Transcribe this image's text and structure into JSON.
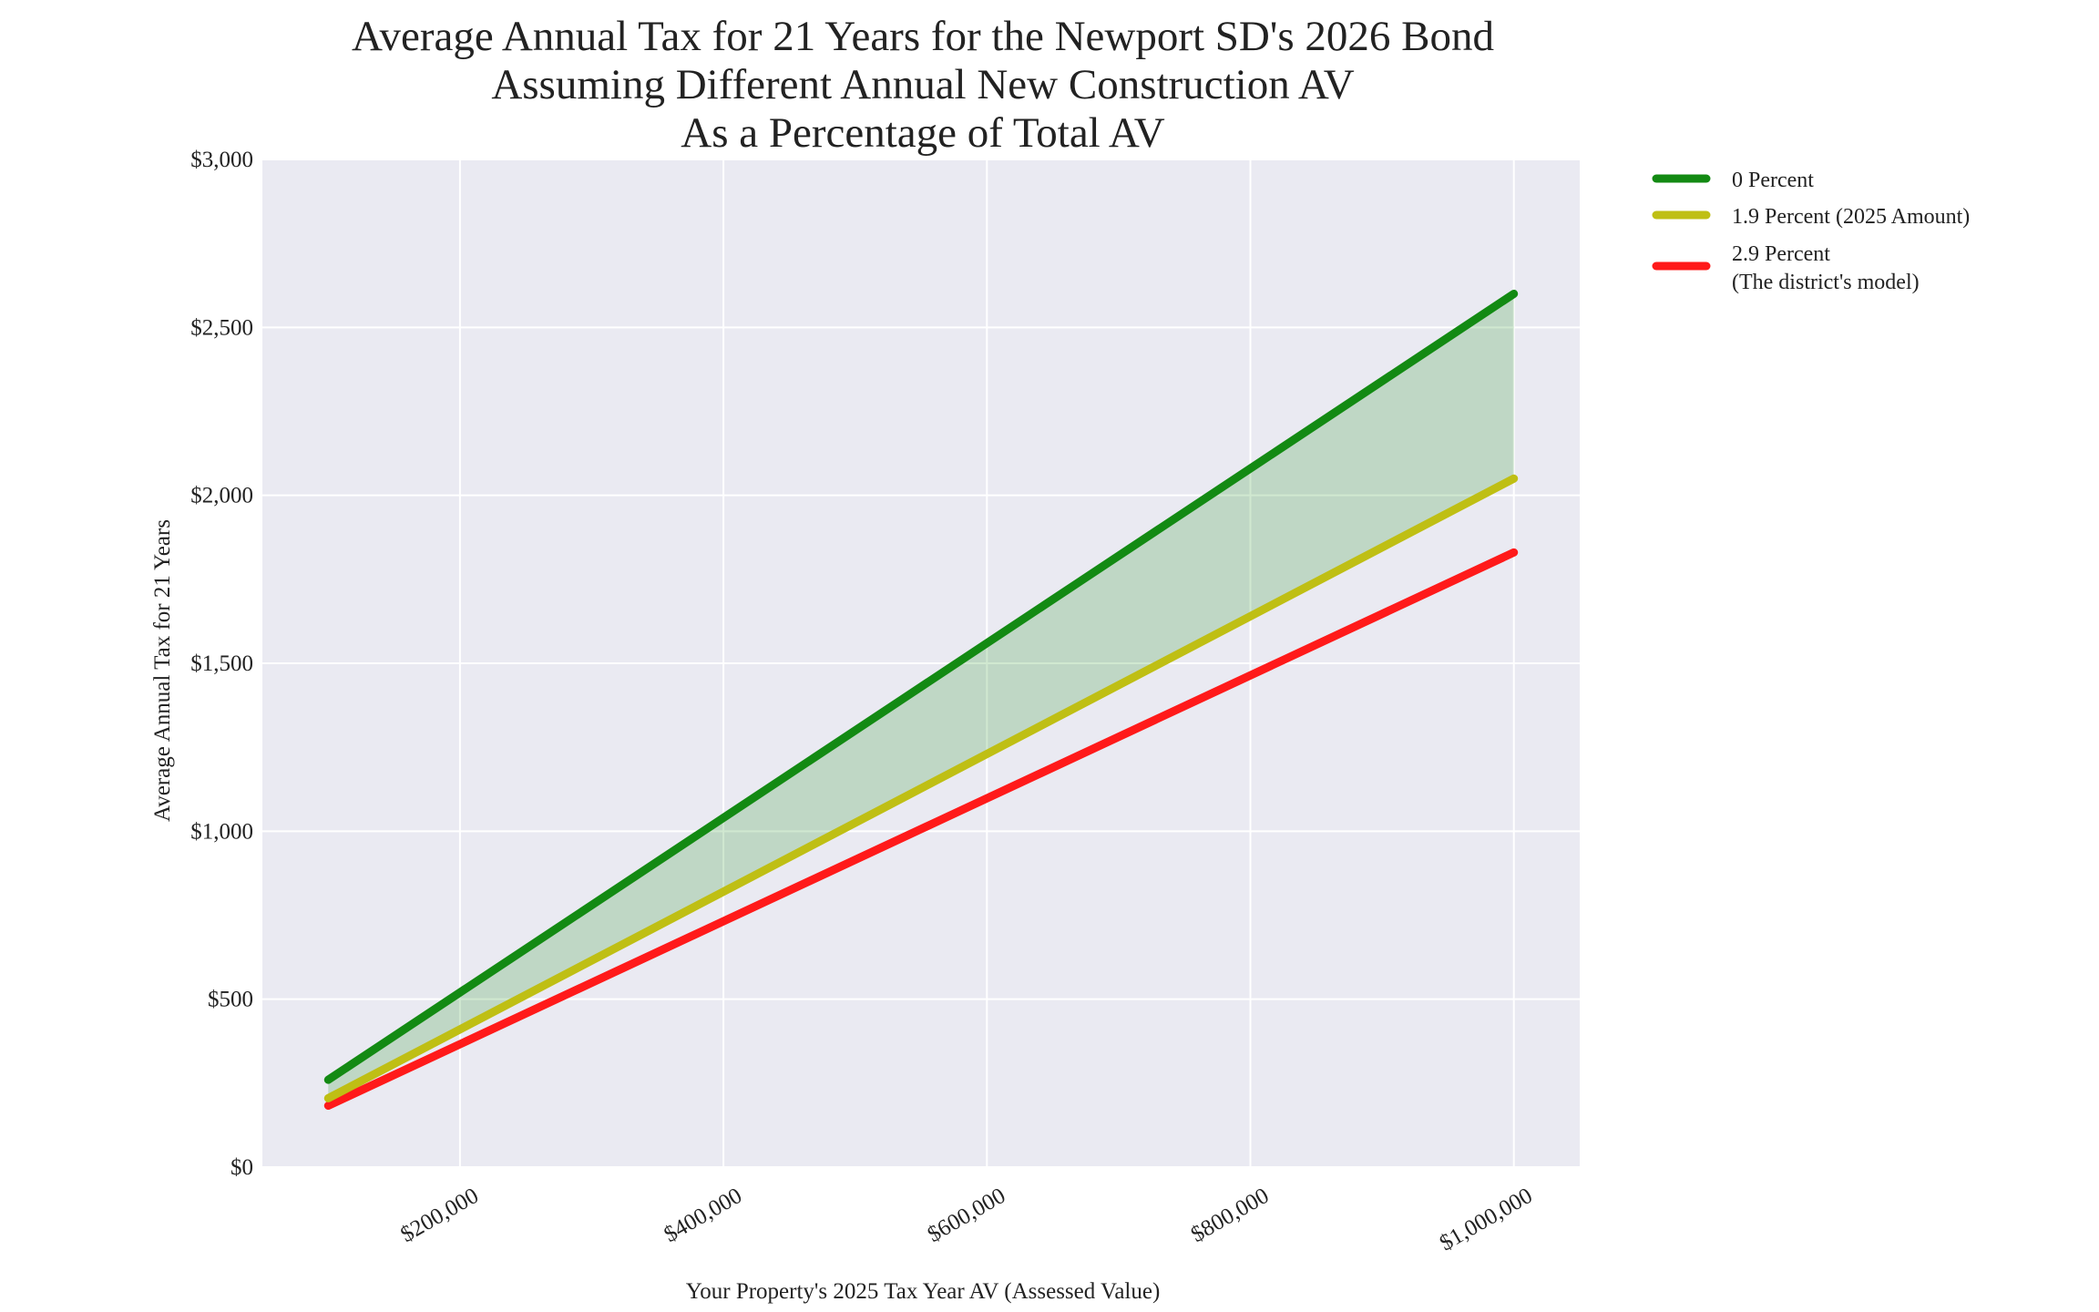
{
  "chart_data": {
    "type": "line",
    "title": [
      "Average Annual Tax for 21 Years for the Newport SD's 2026 Bond",
      "Assuming Different Annual New Construction AV",
      "As a Percentage of Total AV"
    ],
    "xlabel": "Your Property's 2025 Tax Year AV (Assessed Value)",
    "ylabel": "Average Annual Tax for 21 Years",
    "xlim": [
      50000,
      1050000
    ],
    "ylim": [
      0,
      3000
    ],
    "grid": true,
    "legend_position": "outside-top-right",
    "x_ticks": [
      200000,
      400000,
      600000,
      800000,
      1000000
    ],
    "x_tick_labels": [
      "$200,000",
      "$400,000",
      "$600,000",
      "$800,000",
      "$1,000,000"
    ],
    "y_ticks": [
      0,
      500,
      1000,
      1500,
      2000,
      2500,
      3000
    ],
    "y_tick_labels": [
      "$0",
      "$500",
      "$1,000",
      "$1,500",
      "$2,000",
      "$2,500",
      "$3,000"
    ],
    "x": [
      100000,
      1000000
    ],
    "series": [
      {
        "name": "0 Percent",
        "values": [
          260,
          2600
        ],
        "color": "#138a13"
      },
      {
        "name": "1.9 Percent (2025 Amount)",
        "values": [
          205,
          2050
        ],
        "color": "#bfbf14"
      },
      {
        "name": [
          "2.9 Percent",
          "(The district's model)"
        ],
        "values": [
          183,
          1830
        ],
        "color": "#ff1a1a"
      }
    ],
    "fill_between": {
      "series": [
        0,
        1
      ],
      "color": "#138a13",
      "opacity": 0.2
    },
    "plot_background": "#eaeaf2"
  }
}
